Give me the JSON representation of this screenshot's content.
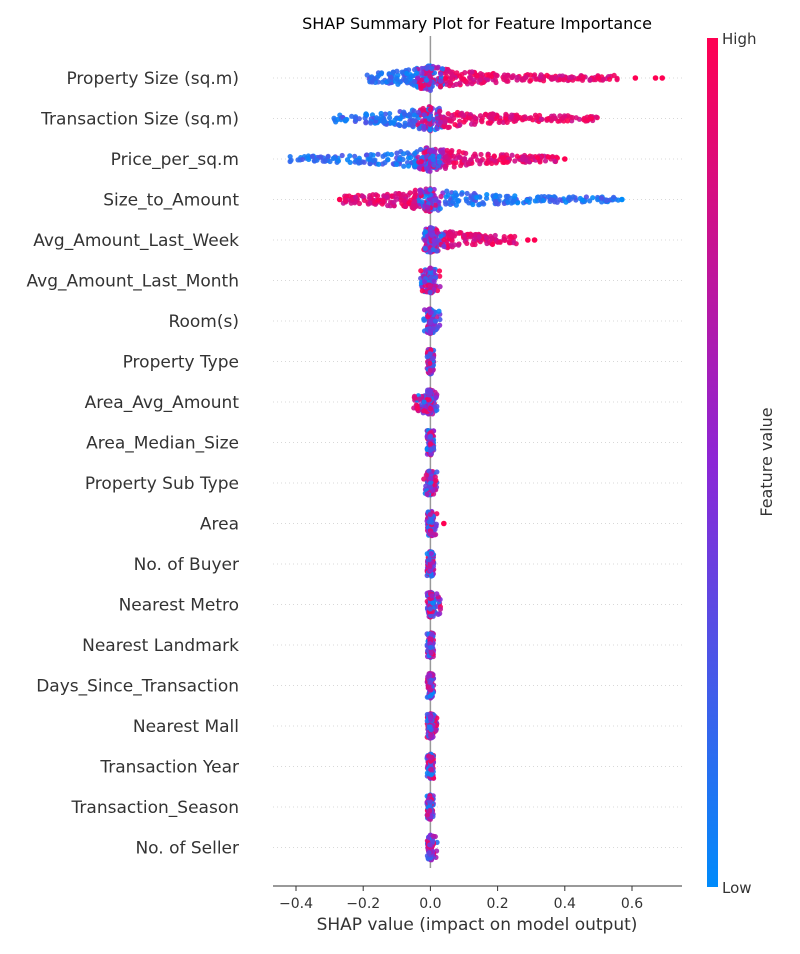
{
  "chart_data": {
    "type": "scatter",
    "title": "SHAP Summary Plot for Feature Importance",
    "xlabel": "SHAP value (impact on model output)",
    "xlim": [
      -0.47,
      0.75
    ],
    "xticks": [
      -0.4,
      -0.2,
      0.0,
      0.2,
      0.4,
      0.6
    ],
    "xtick_labels": [
      "−0.4",
      "−0.2",
      "0.0",
      "0.2",
      "0.4",
      "0.6"
    ],
    "colorbar": {
      "label": "Feature value",
      "high_label": "High",
      "low_label": "Low",
      "low_color": "#008bfb",
      "mid_color": "#8c26d6",
      "high_color": "#ff0052"
    },
    "features": [
      {
        "name": "Property Size (sq.m)",
        "low_range": [
          -0.19,
          0.03
        ],
        "high_range": [
          0.03,
          0.56
        ],
        "outliers_high": [
          0.61,
          0.67,
          0.69
        ],
        "outliers_low": [],
        "density": 1.0
      },
      {
        "name": "Transaction Size (sq.m)",
        "low_range": [
          -0.29,
          0.02
        ],
        "high_range": [
          0.02,
          0.5
        ],
        "outliers_high": [],
        "outliers_low": [],
        "density": 0.95
      },
      {
        "name": "Price_per_sq.m",
        "low_range": [
          -0.42,
          0.02
        ],
        "high_range": [
          0.0,
          0.38
        ],
        "outliers_high": [
          0.4
        ],
        "outliers_low": [],
        "density": 0.95
      },
      {
        "name": "Size_to_Amount",
        "low_range": [
          0.0,
          0.56
        ],
        "high_range": [
          -0.26,
          0.0
        ],
        "outliers_high": [
          -0.27
        ],
        "outliers_low": [
          0.57
        ],
        "density": 0.9
      },
      {
        "name": "Avg_Amount_Last_Week",
        "low_range": [
          -0.02,
          0.02
        ],
        "high_range": [
          0.0,
          0.26
        ],
        "outliers_high": [
          0.29,
          0.31
        ],
        "outliers_low": [],
        "density": 0.8
      },
      {
        "name": "Avg_Amount_Last_Month",
        "low_range": [
          -0.01,
          0.01
        ],
        "high_range": [
          -0.03,
          0.03
        ],
        "outliers_high": [],
        "outliers_low": [],
        "density": 0.4
      },
      {
        "name": "Room(s)",
        "low_range": [
          -0.01,
          0.01
        ],
        "high_range": [
          -0.02,
          0.03
        ],
        "outliers_high": [],
        "outliers_low": [],
        "density": 0.35
      },
      {
        "name": "Property Type",
        "low_range": [
          -0.01,
          0.01
        ],
        "high_range": [
          -0.01,
          0.01
        ],
        "outliers_high": [],
        "outliers_low": [],
        "density": 0.3
      },
      {
        "name": "Area_Avg_Amount",
        "low_range": [
          -0.02,
          0.02
        ],
        "high_range": [
          -0.05,
          0.0
        ],
        "outliers_high": [],
        "outliers_low": [],
        "density": 0.4
      },
      {
        "name": "Area_Median_Size",
        "low_range": [
          -0.01,
          0.01
        ],
        "high_range": [
          -0.01,
          0.01
        ],
        "outliers_high": [],
        "outliers_low": [],
        "density": 0.3
      },
      {
        "name": "Property Sub Type",
        "low_range": [
          -0.01,
          0.01
        ],
        "high_range": [
          -0.02,
          0.02
        ],
        "outliers_high": [],
        "outliers_low": [],
        "density": 0.3
      },
      {
        "name": "Area",
        "low_range": [
          -0.01,
          0.01
        ],
        "high_range": [
          -0.01,
          0.02
        ],
        "outliers_high": [
          0.04
        ],
        "outliers_low": [],
        "density": 0.3
      },
      {
        "name": "No. of Buyer",
        "low_range": [
          -0.01,
          0.01
        ],
        "high_range": [
          -0.01,
          0.01
        ],
        "outliers_high": [],
        "outliers_low": [],
        "density": 0.25
      },
      {
        "name": "Nearest Metro",
        "low_range": [
          -0.01,
          0.03
        ],
        "high_range": [
          -0.01,
          0.01
        ],
        "outliers_high": [],
        "outliers_low": [],
        "density": 0.3
      },
      {
        "name": "Nearest Landmark",
        "low_range": [
          -0.01,
          0.01
        ],
        "high_range": [
          -0.01,
          0.01
        ],
        "outliers_high": [],
        "outliers_low": [],
        "density": 0.25
      },
      {
        "name": "Days_Since_Transaction",
        "low_range": [
          -0.01,
          0.01
        ],
        "high_range": [
          -0.01,
          0.01
        ],
        "outliers_high": [],
        "outliers_low": [],
        "density": 0.25
      },
      {
        "name": "Nearest Mall",
        "low_range": [
          -0.01,
          0.02
        ],
        "high_range": [
          -0.01,
          0.01
        ],
        "outliers_high": [],
        "outliers_low": [],
        "density": 0.25
      },
      {
        "name": "Transaction Year",
        "low_range": [
          -0.01,
          0.01
        ],
        "high_range": [
          -0.01,
          0.01
        ],
        "outliers_high": [],
        "outliers_low": [],
        "density": 0.25
      },
      {
        "name": "Transaction_Season",
        "low_range": [
          -0.01,
          0.01
        ],
        "high_range": [
          -0.01,
          0.01
        ],
        "outliers_high": [],
        "outliers_low": [],
        "density": 0.25
      },
      {
        "name": "No. of Seller",
        "low_range": [
          -0.01,
          0.02
        ],
        "high_range": [
          -0.01,
          0.01
        ],
        "outliers_high": [],
        "outliers_low": [],
        "density": 0.25
      }
    ]
  }
}
